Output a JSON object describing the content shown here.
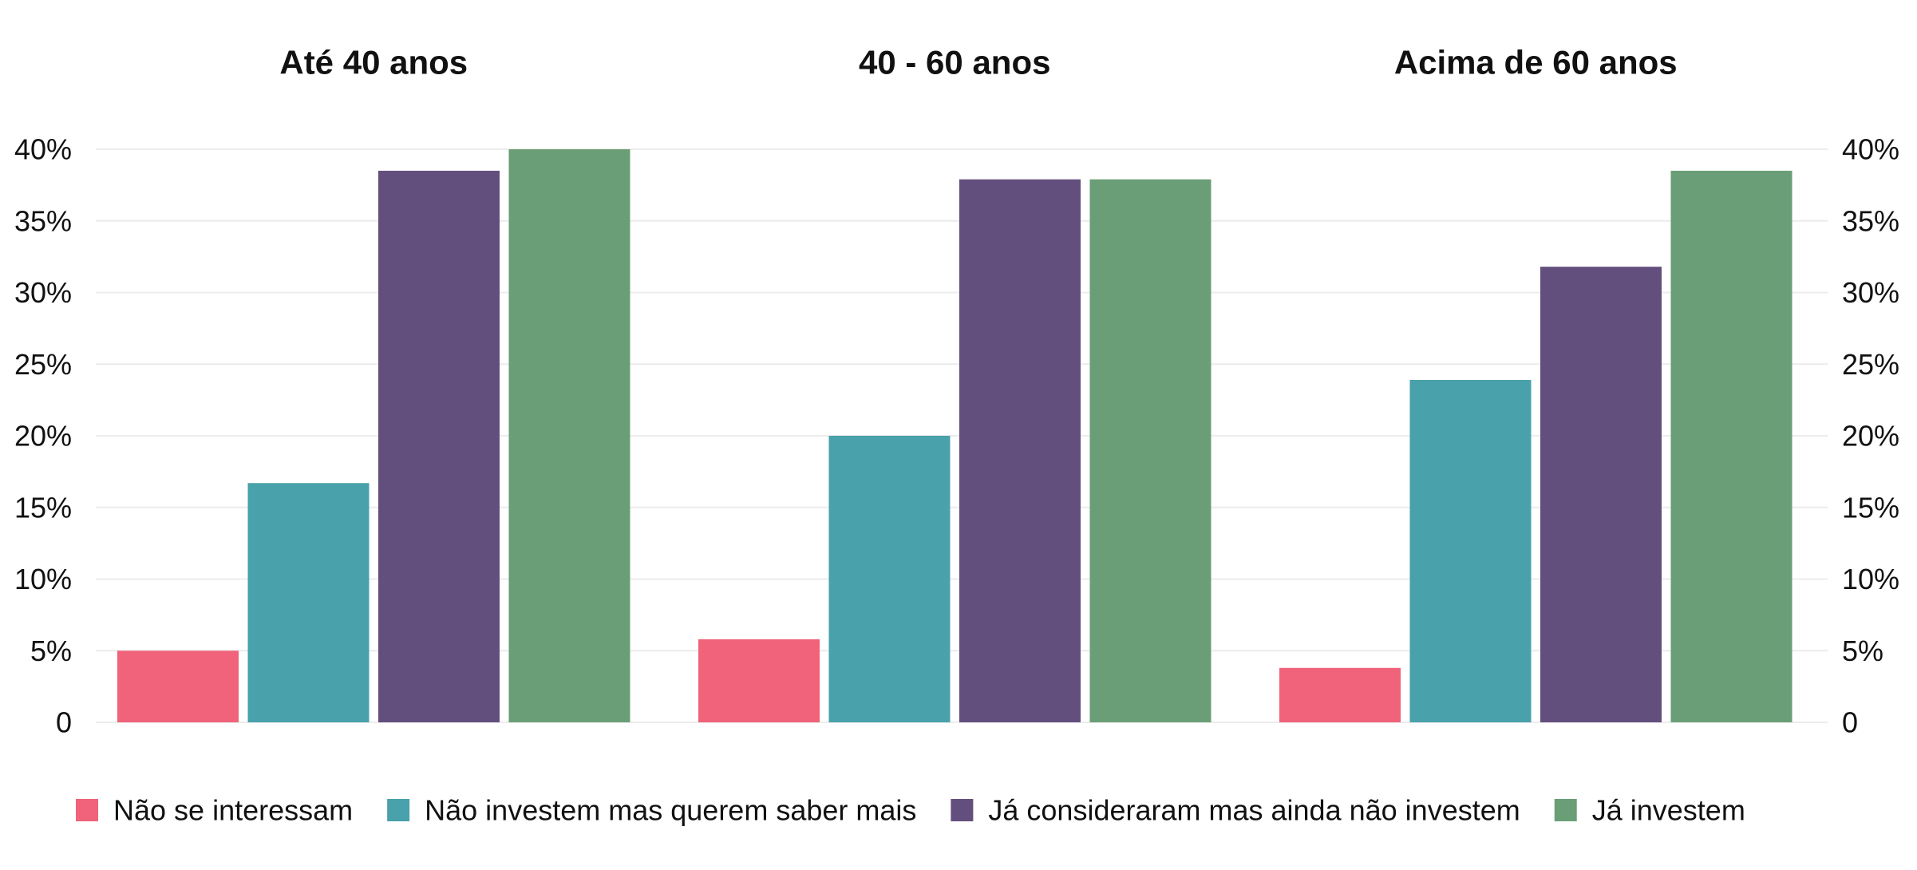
{
  "chart_data": {
    "type": "bar",
    "panels": [
      {
        "title": "Até 40 anos",
        "values": [
          5,
          16.7,
          38.5,
          40
        ]
      },
      {
        "title": "40 - 60 anos",
        "values": [
          5.8,
          20,
          37.9,
          37.9
        ]
      },
      {
        "title": "Acima de 60 anos",
        "values": [
          3.8,
          23.9,
          31.8,
          38.5
        ]
      }
    ],
    "series": [
      {
        "name": "Não se interessam",
        "color": "#f0637a"
      },
      {
        "name": "Não investem mas querem saber mais",
        "color": "#48a1ab"
      },
      {
        "name": "Já consideraram mas ainda não investem",
        "color": "#634f7d"
      },
      {
        "name": "Já investem",
        "color": "#6a9e76"
      }
    ],
    "ylim": [
      0,
      40
    ],
    "yticks": [
      0,
      5,
      10,
      15,
      20,
      25,
      30,
      35,
      40
    ],
    "ytick_labels": [
      "0",
      "5%",
      "10%",
      "15%",
      "20%",
      "25%",
      "30%",
      "35%",
      "40%"
    ],
    "y_axis": "both sides",
    "grid": true,
    "legend_position": "bottom"
  }
}
